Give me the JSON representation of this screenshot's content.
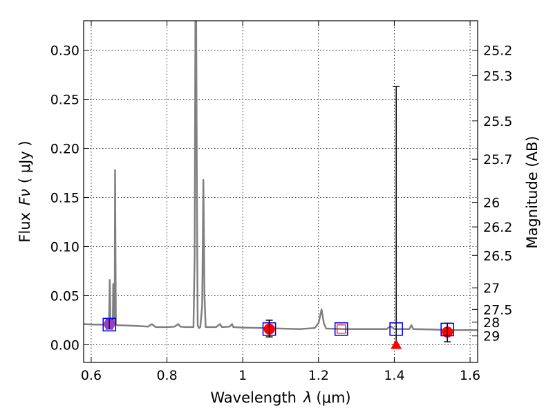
{
  "chart_data": {
    "type": "scatter",
    "xlabel_prefix": "Wavelength",
    "xlabel_symbol": "λ",
    "xlabel_unit": "(μm)",
    "ylabel_prefix": "Flux",
    "ylabel_symbol": "Fν",
    "ylabel_unit": "( μJy )",
    "y2label": "Magnitude (AB)",
    "xlim": [
      0.58,
      1.62
    ],
    "ylim": [
      -0.018,
      0.33
    ],
    "grid": true,
    "x_ticks": [
      {
        "value": 0.6,
        "label": "0.6"
      },
      {
        "value": 0.8,
        "label": "0.8"
      },
      {
        "value": 1.0,
        "label": "1"
      },
      {
        "value": 1.2,
        "label": "1.2"
      },
      {
        "value": 1.4,
        "label": "1.4"
      },
      {
        "value": 1.6,
        "label": "1.6"
      }
    ],
    "y_ticks": [
      {
        "value": 0.0,
        "label": "0.00"
      },
      {
        "value": 0.05,
        "label": "0.05"
      },
      {
        "value": 0.1,
        "label": "0.10"
      },
      {
        "value": 0.15,
        "label": "0.15"
      },
      {
        "value": 0.2,
        "label": "0.20"
      },
      {
        "value": 0.25,
        "label": "0.25"
      },
      {
        "value": 0.3,
        "label": "0.30"
      }
    ],
    "y2_ticks": [
      {
        "flux": 0.3,
        "label": "25.2"
      },
      {
        "flux": 0.274,
        "label": "25.3"
      },
      {
        "flux": 0.228,
        "label": "25.5"
      },
      {
        "flux": 0.189,
        "label": "25.7"
      },
      {
        "flux": 0.145,
        "label": "26"
      },
      {
        "flux": 0.12,
        "label": "26.2"
      },
      {
        "flux": 0.091,
        "label": "26.5"
      },
      {
        "flux": 0.058,
        "label": "27"
      },
      {
        "flux": 0.036,
        "label": "27.5"
      },
      {
        "flux": 0.023,
        "label": "28"
      },
      {
        "flux": 0.009,
        "label": "29"
      }
    ],
    "model_spectrum": {
      "name": "model spectrum",
      "color": "#808080",
      "points": [
        [
          0.58,
          0.021
        ],
        [
          0.61,
          0.0205
        ],
        [
          0.63,
          0.0205
        ],
        [
          0.645,
          0.02
        ],
        [
          0.647,
          0.022
        ],
        [
          0.649,
          0.066
        ],
        [
          0.651,
          0.021
        ],
        [
          0.655,
          0.019
        ],
        [
          0.657,
          0.021
        ],
        [
          0.658,
          0.062
        ],
        [
          0.66,
          0.021
        ],
        [
          0.662,
          0.025
        ],
        [
          0.663,
          0.178
        ],
        [
          0.665,
          0.02
        ],
        [
          0.67,
          0.02
        ],
        [
          0.7,
          0.0195
        ],
        [
          0.73,
          0.019
        ],
        [
          0.75,
          0.0185
        ],
        [
          0.76,
          0.021
        ],
        [
          0.77,
          0.018
        ],
        [
          0.8,
          0.018
        ],
        [
          0.82,
          0.0185
        ],
        [
          0.83,
          0.021
        ],
        [
          0.835,
          0.0185
        ],
        [
          0.85,
          0.018
        ],
        [
          0.87,
          0.018
        ],
        [
          0.873,
          0.09
        ],
        [
          0.875,
          0.33
        ],
        [
          0.877,
          0.33
        ],
        [
          0.879,
          0.15
        ],
        [
          0.881,
          0.02
        ],
        [
          0.884,
          0.017
        ],
        [
          0.888,
          0.018
        ],
        [
          0.893,
          0.04
        ],
        [
          0.896,
          0.168
        ],
        [
          0.899,
          0.05
        ],
        [
          0.902,
          0.018
        ],
        [
          0.93,
          0.018
        ],
        [
          0.94,
          0.021
        ],
        [
          0.945,
          0.018
        ],
        [
          0.965,
          0.0185
        ],
        [
          0.972,
          0.021
        ],
        [
          0.975,
          0.018
        ],
        [
          1.0,
          0.0175
        ],
        [
          1.05,
          0.017
        ],
        [
          1.1,
          0.0165
        ],
        [
          1.15,
          0.016
        ],
        [
          1.19,
          0.017
        ],
        [
          1.2,
          0.022
        ],
        [
          1.208,
          0.036
        ],
        [
          1.214,
          0.022
        ],
        [
          1.22,
          0.0165
        ],
        [
          1.27,
          0.016
        ],
        [
          1.32,
          0.016
        ],
        [
          1.38,
          0.016
        ],
        [
          1.39,
          0.019
        ],
        [
          1.4,
          0.016
        ],
        [
          1.44,
          0.016
        ],
        [
          1.445,
          0.02
        ],
        [
          1.45,
          0.016
        ],
        [
          1.5,
          0.0155
        ],
        [
          1.55,
          0.015
        ],
        [
          1.62,
          0.015
        ]
      ]
    },
    "photometry": [
      {
        "x": 0.648,
        "y": 0.021,
        "yerr": [
          0.016,
          0.026
        ],
        "marker": "circle",
        "color": "#9a3cc8"
      },
      {
        "x": 1.07,
        "y": 0.016,
        "yerr": [
          0.008,
          0.025
        ],
        "marker": "circle",
        "color": "#ff0000"
      },
      {
        "x": 1.54,
        "y": 0.013,
        "yerr": [
          0.003,
          0.022
        ],
        "marker": "circle",
        "color": "#ff0000"
      },
      {
        "x": 1.405,
        "y": 0.0,
        "yerr": [
          0.0,
          0.263
        ],
        "marker": "triangle",
        "color": "#ff0000"
      }
    ],
    "model_photometry": [
      {
        "x": 0.648,
        "y": 0.0205,
        "edge_color": "#0000ff"
      },
      {
        "x": 1.07,
        "y": 0.016,
        "edge_color": "#0000ff"
      },
      {
        "x": 1.26,
        "y": 0.016,
        "edge_color": "#0000ff",
        "inner_color": "#ff0000"
      },
      {
        "x": 1.405,
        "y": 0.016,
        "edge_color": "#0000ff"
      },
      {
        "x": 1.54,
        "y": 0.0155,
        "edge_color": "#0000ff"
      }
    ]
  }
}
